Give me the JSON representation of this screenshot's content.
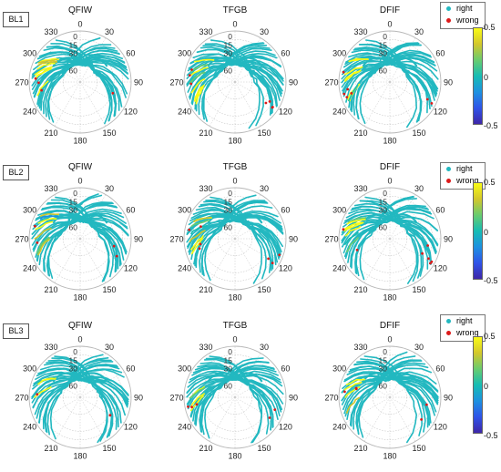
{
  "rows": [
    {
      "label": "BL1",
      "titles": [
        "QFIW",
        "TFGB",
        "DFIF"
      ]
    },
    {
      "label": "BL2",
      "titles": [
        "QFIW",
        "TFGB",
        "DFIF"
      ]
    },
    {
      "label": "BL3",
      "titles": [
        "QFIW",
        "TFGB",
        "DFIF"
      ]
    }
  ],
  "legend": {
    "right": "right",
    "wrong": "wrong"
  },
  "colors": {
    "right": "#22b8c0",
    "wrong": "#dd1a1a",
    "grid": "#b8b8b8"
  },
  "colorbar": {
    "ticks": [
      "0.5",
      "0",
      "-0.5"
    ],
    "colormap": "parula"
  },
  "chart_data": {
    "type": "scatter",
    "projection": "polar skyplot",
    "azimuth_ticks": [
      "0",
      "30",
      "60",
      "90",
      "120",
      "150",
      "180",
      "210",
      "240",
      "270",
      "300",
      "330"
    ],
    "elevation_ticks": [
      "0",
      "15",
      "30",
      "60"
    ],
    "color_range": [
      -0.5,
      0.5
    ],
    "series": [
      "right",
      "wrong"
    ]
  }
}
